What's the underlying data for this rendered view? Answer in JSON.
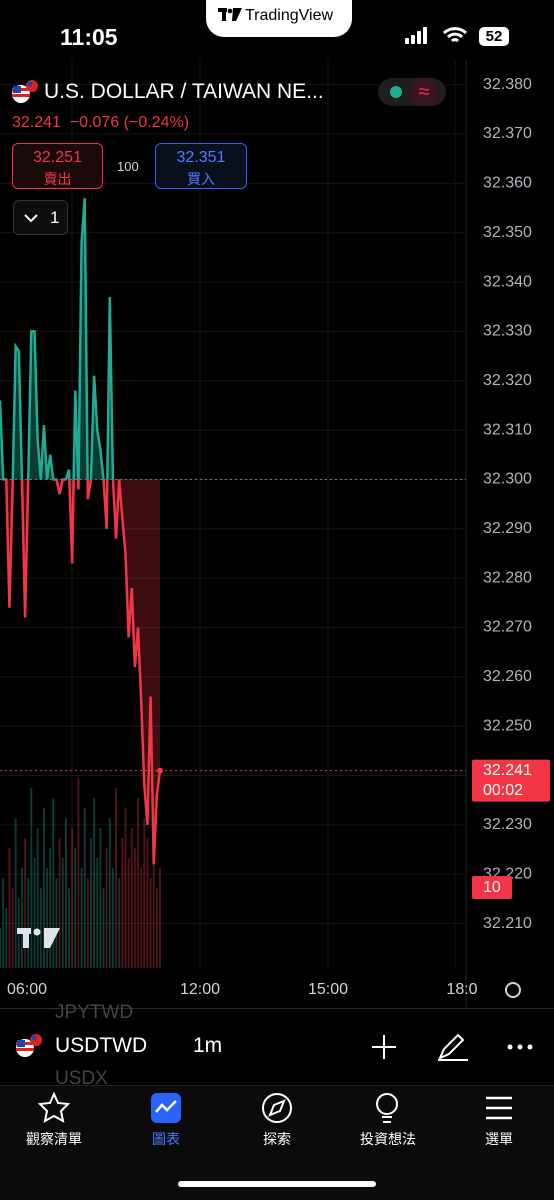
{
  "status_bar": {
    "time": "11:05",
    "app": "TradingView",
    "battery": "52"
  },
  "header": {
    "symbol_name": "U.S. DOLLAR / TAIWAN NE...",
    "last": "32.241",
    "change": "−0.076",
    "change_pct": "(−0.24%)",
    "sell": {
      "price": "32.251",
      "label": "賣出"
    },
    "spread": "100",
    "buy": {
      "price": "32.351",
      "label": "買入"
    },
    "layout_count": "1"
  },
  "chart_data": {
    "type": "line",
    "baseline": 32.3,
    "values": [
      32.316,
      32.3,
      32.3,
      32.274,
      32.298,
      32.327,
      32.326,
      32.3,
      32.272,
      32.3,
      32.33,
      32.33,
      32.308,
      32.3,
      32.311,
      32.3,
      32.305,
      32.3,
      32.3,
      32.297,
      32.3,
      32.3,
      32.302,
      32.283,
      32.318,
      32.298,
      32.348,
      32.357,
      32.296,
      32.3,
      32.321,
      32.31,
      32.306,
      32.3,
      32.29,
      32.337,
      32.3,
      32.288,
      32.3,
      32.292,
      32.285,
      32.268,
      32.278,
      32.262,
      32.27,
      32.255,
      32.238,
      32.23,
      32.256,
      32.222,
      32.236,
      32.241
    ],
    "volume": [
      4,
      9,
      6,
      12,
      8,
      15,
      7,
      10,
      13,
      9,
      18,
      11,
      14,
      8,
      16,
      10,
      12,
      17,
      9,
      13,
      11,
      15,
      8,
      14,
      12,
      19,
      10,
      16,
      9,
      13,
      17,
      11,
      14,
      8,
      12,
      15,
      10,
      18,
      9,
      13,
      16,
      11,
      14,
      12,
      17,
      10,
      15,
      13,
      9,
      16,
      8,
      10
    ],
    "vlim": [
      0,
      20
    ],
    "colors": {
      "up": "#22ab94",
      "down": "#f23645"
    },
    "ylim": [
      32.201,
      32.385
    ],
    "yticks": [
      {
        "value": 32.38,
        "label": "32.380"
      },
      {
        "value": 32.37,
        "label": "32.370"
      },
      {
        "value": 32.36,
        "label": "32.360"
      },
      {
        "value": 32.35,
        "label": "32.350"
      },
      {
        "value": 32.34,
        "label": "32.340"
      },
      {
        "value": 32.33,
        "label": "32.330"
      },
      {
        "value": 32.32,
        "label": "32.320"
      },
      {
        "value": 32.31,
        "label": "32.310"
      },
      {
        "value": 32.3,
        "label": "32.300"
      },
      {
        "value": 32.29,
        "label": "32.290"
      },
      {
        "value": 32.28,
        "label": "32.280"
      },
      {
        "value": 32.27,
        "label": "32.270"
      },
      {
        "value": 32.26,
        "label": "32.260"
      },
      {
        "value": 32.25,
        "label": "32.250"
      },
      {
        "value": 32.24,
        "label": "32.240"
      },
      {
        "value": 32.23,
        "label": "32.230"
      },
      {
        "value": 32.22,
        "label": "32.220"
      },
      {
        "value": 32.21,
        "label": "32.210"
      }
    ],
    "x_labels": [
      "06:00",
      "12:00",
      "15:00",
      "18:0"
    ],
    "last_price": {
      "value": 32.241,
      "label": "32.241"
    },
    "countdown": "00:02",
    "volume_label": "10"
  },
  "toolbar": {
    "ghost_above": "JPYTWD",
    "symbol": "USDTWD",
    "ghost_below": "USDX",
    "interval": "1m"
  },
  "nav": [
    "觀察清單",
    "圖表",
    "探索",
    "投資想法",
    "選單"
  ]
}
